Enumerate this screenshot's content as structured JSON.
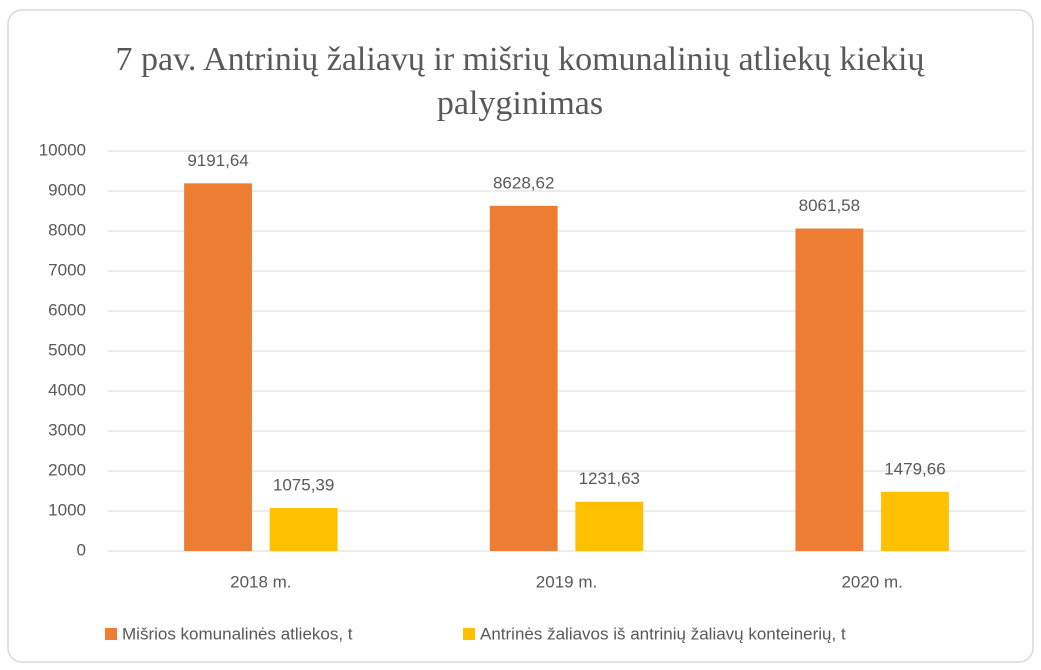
{
  "chart_data": {
    "type": "bar",
    "title": "7 pav. Antrinių žaliavų ir mišrių komunalinių atliekų kiekių palyginimas",
    "categories": [
      "2018 m.",
      "2019 m.",
      "2020 m."
    ],
    "series": [
      {
        "name": "Mišrios komunalinės atliekos, t",
        "color": "#ed7d31",
        "values": [
          9191.64,
          8628.62,
          8061.58
        ],
        "value_labels": [
          "9191,64",
          "8628,62",
          "8061,58"
        ]
      },
      {
        "name": "Antrinės žaliavos iš antrinių žaliavų konteinerių, t",
        "color": "#ffc000",
        "values": [
          1075.39,
          1231.63,
          1479.66
        ],
        "value_labels": [
          "1075,39",
          "1231,63",
          "1479,66"
        ]
      }
    ],
    "ylim": [
      0,
      10000
    ],
    "yticks": [
      0,
      1000,
      2000,
      3000,
      4000,
      5000,
      6000,
      7000,
      8000,
      9000,
      10000
    ],
    "grid": true,
    "legend": "bottom"
  }
}
